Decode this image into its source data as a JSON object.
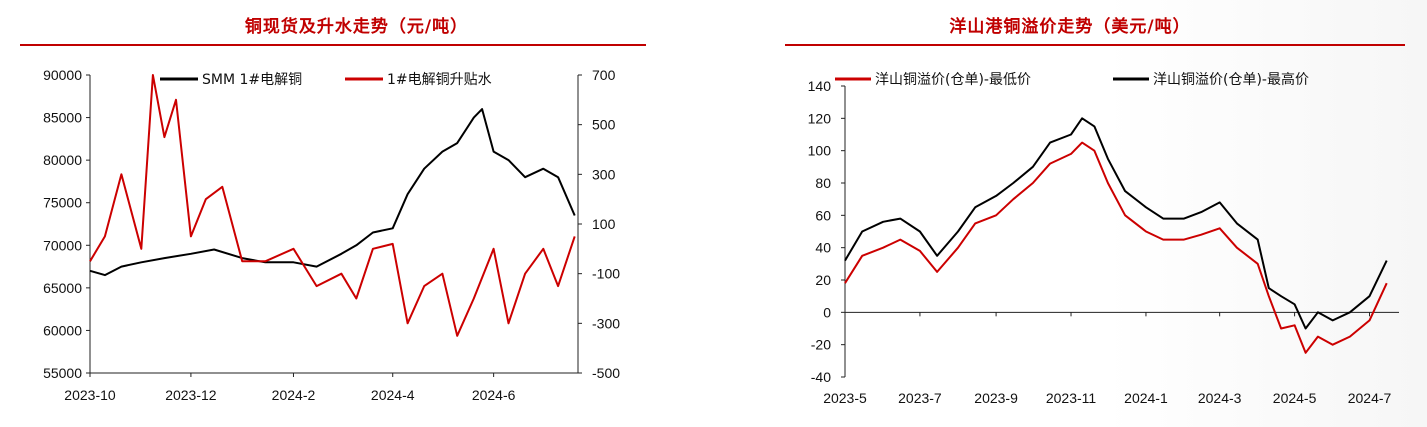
{
  "chart_data": [
    {
      "type": "line",
      "title": "铜现货及升水走势（元/吨）",
      "x": [
        "2023-10",
        "2023-12",
        "2024-2",
        "2024-4",
        "2024-6"
      ],
      "x_tick_labels": [
        "2023-10",
        "2023-12",
        "2024-2",
        "2024-4",
        "2024-6"
      ],
      "ylim_left": [
        55000,
        90000
      ],
      "ylim_right": [
        -500,
        700
      ],
      "y_left_ticks": [
        55000,
        60000,
        65000,
        70000,
        75000,
        80000,
        85000,
        90000
      ],
      "y_right_ticks": [
        -500,
        -300,
        -100,
        100,
        300,
        500,
        700
      ],
      "legend_position": "top",
      "series": [
        {
          "name": "SMM 1#电解铜",
          "axis": "left",
          "color": "#000000",
          "x": [
            "2023-10-01",
            "2023-10-10",
            "2023-10-20",
            "2023-11-01",
            "2023-11-15",
            "2023-12-01",
            "2023-12-15",
            "2024-01-01",
            "2024-01-15",
            "2024-02-01",
            "2024-02-15",
            "2024-03-01",
            "2024-03-10",
            "2024-03-20",
            "2024-04-01",
            "2024-04-10",
            "2024-04-20",
            "2024-05-01",
            "2024-05-10",
            "2024-05-20",
            "2024-05-25",
            "2024-06-01",
            "2024-06-10",
            "2024-06-20",
            "2024-07-01",
            "2024-07-10",
            "2024-07-20"
          ],
          "values": [
            67000,
            66500,
            67500,
            68000,
            68500,
            69000,
            69500,
            68500,
            68000,
            68000,
            67500,
            69000,
            70000,
            71500,
            72000,
            76000,
            79000,
            81000,
            82000,
            85000,
            86000,
            81000,
            80000,
            78000,
            79000,
            78000,
            73500
          ]
        },
        {
          "name": "1#电解铜升贴水",
          "axis": "right",
          "color": "#cc0000",
          "x": [
            "2023-10-01",
            "2023-10-10",
            "2023-10-20",
            "2023-11-01",
            "2023-11-08",
            "2023-11-15",
            "2023-11-22",
            "2023-12-01",
            "2023-12-10",
            "2023-12-20",
            "2024-01-01",
            "2024-01-15",
            "2024-02-01",
            "2024-02-15",
            "2024-03-01",
            "2024-03-10",
            "2024-03-20",
            "2024-04-01",
            "2024-04-10",
            "2024-04-20",
            "2024-05-01",
            "2024-05-10",
            "2024-05-20",
            "2024-06-01",
            "2024-06-10",
            "2024-06-20",
            "2024-07-01",
            "2024-07-10",
            "2024-07-20"
          ],
          "values": [
            -50,
            50,
            300,
            0,
            700,
            450,
            600,
            50,
            200,
            250,
            -50,
            -50,
            0,
            -150,
            -100,
            -200,
            0,
            20,
            -300,
            -150,
            -100,
            -350,
            -200,
            0,
            -300,
            -100,
            0,
            -150,
            50
          ]
        }
      ]
    },
    {
      "type": "line",
      "title": "洋山港铜溢价走势（美元/吨）",
      "x": [
        "2023-5",
        "2023-7",
        "2023-9",
        "2023-11",
        "2024-1",
        "2024-3",
        "2024-5",
        "2024-7"
      ],
      "x_tick_labels": [
        "2023-5",
        "2023-7",
        "2023-9",
        "2023-11",
        "2024-1",
        "2024-3",
        "2024-5",
        "2024-7"
      ],
      "ylim": [
        -40,
        140
      ],
      "y_ticks": [
        -40,
        -20,
        0,
        20,
        40,
        60,
        80,
        100,
        120,
        140
      ],
      "legend_position": "top",
      "series": [
        {
          "name": "洋山铜溢价(仓单)-最低价",
          "color": "#cc0000",
          "x": [
            "2023-05-01",
            "2023-05-15",
            "2023-06-01",
            "2023-06-15",
            "2023-07-01",
            "2023-07-15",
            "2023-08-01",
            "2023-08-15",
            "2023-09-01",
            "2023-09-15",
            "2023-10-01",
            "2023-10-15",
            "2023-11-01",
            "2023-11-10",
            "2023-11-20",
            "2023-12-01",
            "2023-12-15",
            "2024-01-01",
            "2024-01-15",
            "2024-02-01",
            "2024-02-15",
            "2024-03-01",
            "2024-03-15",
            "2024-04-01",
            "2024-04-10",
            "2024-04-20",
            "2024-05-01",
            "2024-05-10",
            "2024-05-20",
            "2024-06-01",
            "2024-06-15",
            "2024-07-01",
            "2024-07-15"
          ],
          "values": [
            18,
            35,
            40,
            45,
            38,
            25,
            40,
            55,
            60,
            70,
            80,
            92,
            98,
            105,
            100,
            80,
            60,
            50,
            45,
            45,
            48,
            52,
            40,
            30,
            10,
            -10,
            -8,
            -25,
            -15,
            -20,
            -15,
            -5,
            18
          ]
        },
        {
          "name": "洋山铜溢价(仓单)-最高价",
          "color": "#000000",
          "x": [
            "2023-05-01",
            "2023-05-15",
            "2023-06-01",
            "2023-06-15",
            "2023-07-01",
            "2023-07-15",
            "2023-08-01",
            "2023-08-15",
            "2023-09-01",
            "2023-09-15",
            "2023-10-01",
            "2023-10-15",
            "2023-11-01",
            "2023-11-10",
            "2023-11-20",
            "2023-12-01",
            "2023-12-15",
            "2024-01-01",
            "2024-01-15",
            "2024-02-01",
            "2024-02-15",
            "2024-03-01",
            "2024-03-15",
            "2024-04-01",
            "2024-04-10",
            "2024-04-20",
            "2024-05-01",
            "2024-05-10",
            "2024-05-20",
            "2024-06-01",
            "2024-06-15",
            "2024-07-01",
            "2024-07-15"
          ],
          "values": [
            32,
            50,
            56,
            58,
            50,
            35,
            50,
            65,
            72,
            80,
            90,
            105,
            110,
            120,
            115,
            95,
            75,
            65,
            58,
            58,
            62,
            68,
            55,
            45,
            15,
            10,
            5,
            -10,
            0,
            -5,
            0,
            10,
            32
          ]
        }
      ]
    }
  ]
}
